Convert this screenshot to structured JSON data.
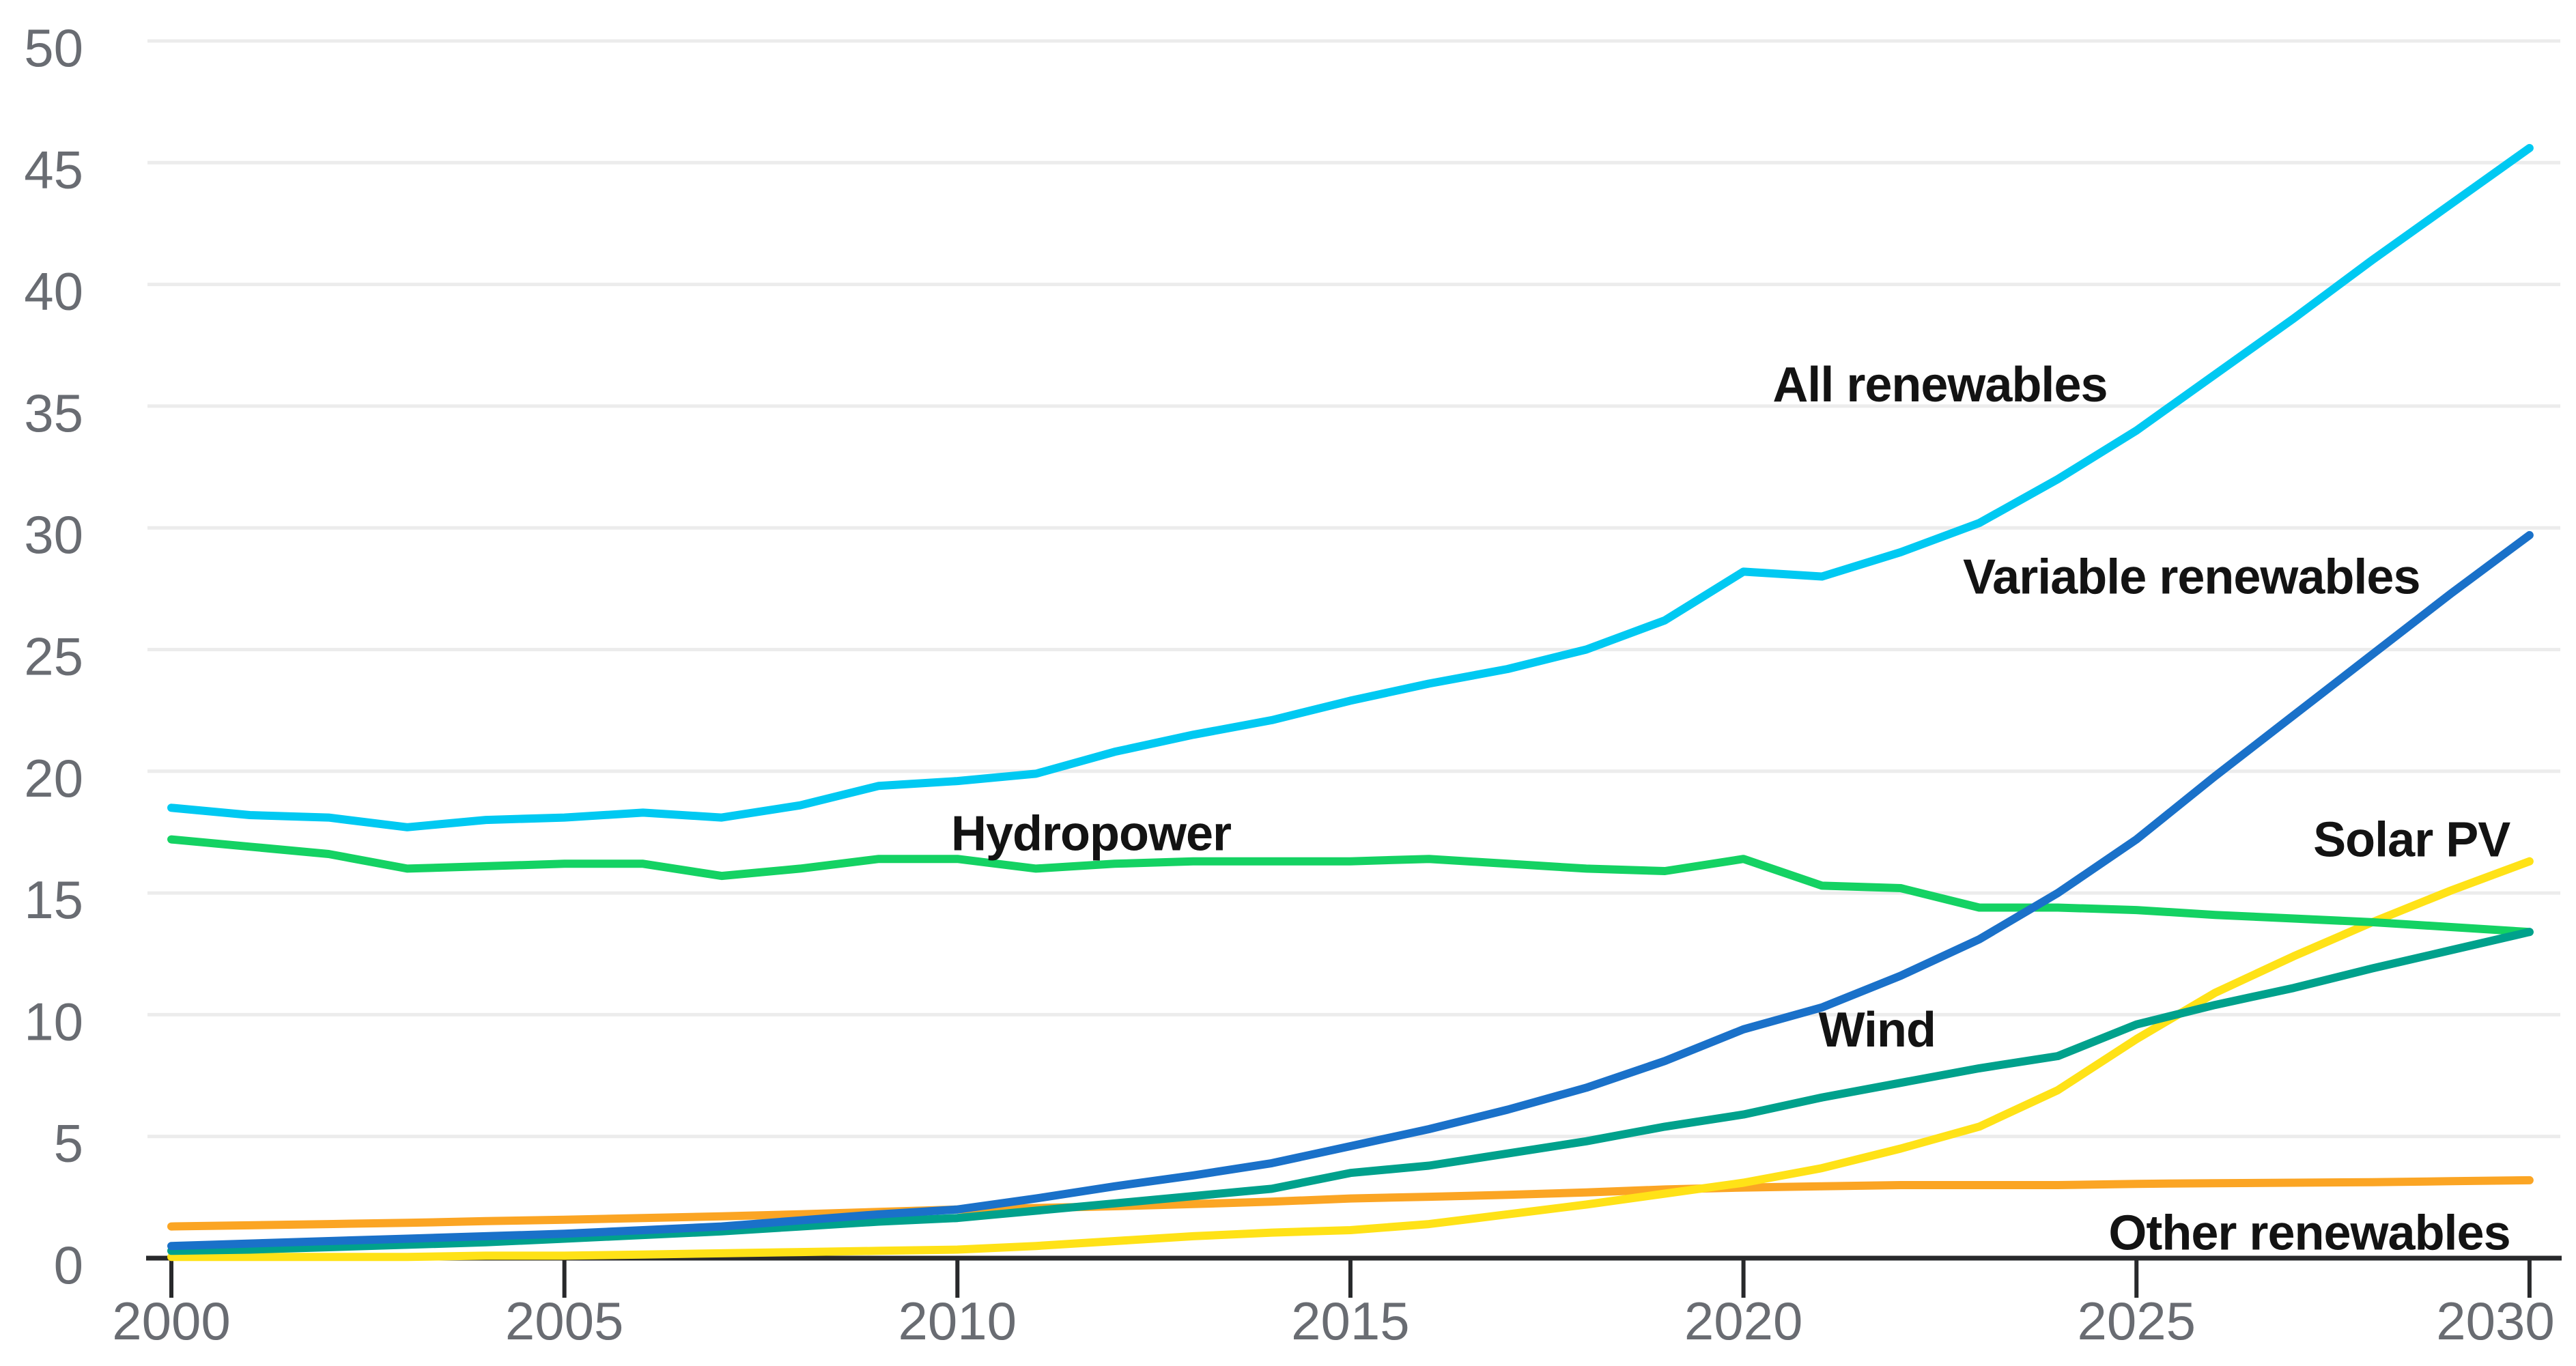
{
  "chart_data": {
    "type": "line",
    "title": "",
    "xlabel": "",
    "ylabel": "",
    "xlim": [
      2000,
      2030
    ],
    "ylim": [
      0,
      50
    ],
    "grid": "horizontal-only",
    "legend_position": "inline-labels-on-chart",
    "x_ticks": [
      2000,
      2005,
      2010,
      2015,
      2020,
      2025,
      2030
    ],
    "y_ticks": [
      0,
      5,
      10,
      15,
      20,
      25,
      30,
      35,
      40,
      45,
      50
    ],
    "x": [
      2000,
      2001,
      2002,
      2003,
      2004,
      2005,
      2006,
      2007,
      2008,
      2009,
      2010,
      2011,
      2012,
      2013,
      2014,
      2015,
      2016,
      2017,
      2018,
      2019,
      2020,
      2021,
      2022,
      2023,
      2024,
      2025,
      2026,
      2027,
      2028,
      2029,
      2030
    ],
    "series": [
      {
        "name": "Other renewables",
        "color": "#fba524",
        "label_at": {
          "x": 2027.2,
          "y": 1.05
        },
        "values": [
          1.3,
          1.35,
          1.4,
          1.45,
          1.52,
          1.58,
          1.65,
          1.72,
          1.8,
          1.9,
          2.0,
          2.06,
          2.13,
          2.22,
          2.32,
          2.45,
          2.52,
          2.6,
          2.7,
          2.82,
          2.9,
          2.95,
          3.0,
          3.0,
          3.0,
          3.05,
          3.08,
          3.1,
          3.12,
          3.16,
          3.2
        ]
      },
      {
        "name": "Solar PV",
        "color": "#ffe217",
        "label_at": {
          "x": 2028.5,
          "y": 17.2
        },
        "values": [
          0.05,
          0.05,
          0.05,
          0.05,
          0.1,
          0.1,
          0.15,
          0.2,
          0.25,
          0.3,
          0.35,
          0.5,
          0.7,
          0.9,
          1.05,
          1.15,
          1.4,
          1.8,
          2.2,
          2.65,
          3.1,
          3.7,
          4.5,
          5.4,
          6.9,
          9.0,
          10.9,
          12.4,
          13.8,
          15.1,
          16.3
        ]
      },
      {
        "name": "Hydropower",
        "color": "#14d263",
        "label_at": {
          "x": 2011.7,
          "y": 17.45
        },
        "values": [
          17.2,
          16.9,
          16.6,
          16.0,
          16.1,
          16.2,
          16.2,
          15.7,
          16.0,
          16.4,
          16.4,
          16.0,
          16.2,
          16.3,
          16.3,
          16.3,
          16.4,
          16.2,
          16.0,
          15.9,
          16.4,
          15.3,
          15.2,
          14.4,
          14.4,
          14.3,
          14.1,
          13.95,
          13.8,
          13.6,
          13.4
        ]
      },
      {
        "name": "Wind",
        "color": "#00a18c",
        "label_at": {
          "x": 2021.7,
          "y": 9.4
        },
        "values": [
          0.3,
          0.35,
          0.45,
          0.55,
          0.65,
          0.8,
          0.95,
          1.1,
          1.3,
          1.5,
          1.65,
          1.95,
          2.25,
          2.55,
          2.85,
          3.5,
          3.8,
          4.3,
          4.8,
          5.4,
          5.9,
          6.6,
          7.2,
          7.8,
          8.3,
          9.6,
          10.4,
          11.1,
          11.9,
          12.65,
          13.4
        ]
      },
      {
        "name": "Variable renewables",
        "color": "#1a71c9",
        "label_at": {
          "x": 2025.7,
          "y": 28.0
        },
        "values": [
          0.5,
          0.6,
          0.7,
          0.8,
          0.9,
          1.0,
          1.15,
          1.3,
          1.55,
          1.8,
          2.0,
          2.45,
          2.95,
          3.4,
          3.9,
          4.6,
          5.3,
          6.1,
          7.0,
          8.1,
          9.4,
          10.3,
          11.6,
          13.1,
          15.0,
          17.2,
          19.8,
          22.3,
          24.8,
          27.3,
          29.7
        ]
      },
      {
        "name": "All renewables",
        "color": "#00c9f2",
        "label_at": {
          "x": 2022.5,
          "y": 35.9
        },
        "values": [
          18.5,
          18.2,
          18.1,
          17.7,
          18.0,
          18.1,
          18.3,
          18.1,
          18.6,
          19.4,
          19.6,
          19.9,
          20.8,
          21.5,
          22.1,
          22.9,
          23.6,
          24.2,
          25.0,
          26.2,
          28.2,
          28.0,
          29.0,
          30.2,
          32.0,
          34.0,
          36.3,
          38.6,
          41.0,
          43.3,
          45.6
        ]
      }
    ],
    "colors": {
      "background": "#ffffff",
      "grid": "#ececec",
      "axis": "#28292b",
      "tick_label": "#696c72",
      "annotation": "#131313"
    }
  }
}
